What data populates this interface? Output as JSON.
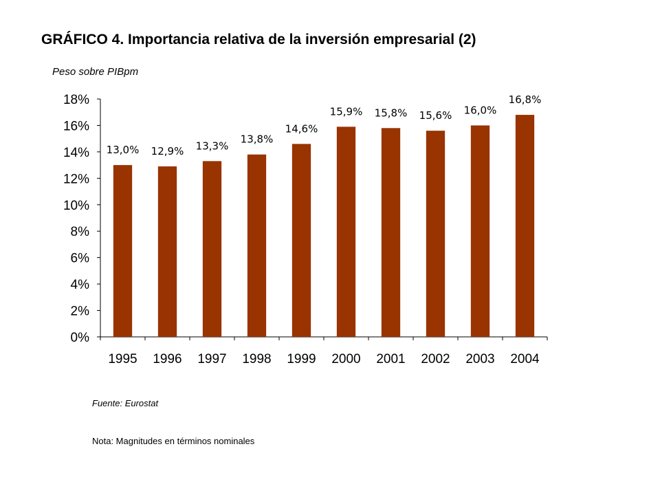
{
  "page": {
    "title": "GRÁFICO 4. Importancia relativa de la inversión empresarial (2)",
    "units_label": "Peso sobre PIBpm",
    "source": "Fuente: Eurostat",
    "note": "Nota: Magnitudes en términos nominales"
  },
  "chart_data": {
    "type": "bar",
    "title": "GRÁFICO 4. Importancia relativa de la inversión empresarial (2)",
    "ylabel": "Peso sobre PIBpm",
    "xlabel": "",
    "categories": [
      "1995",
      "1996",
      "1997",
      "1998",
      "1999",
      "2000",
      "2001",
      "2002",
      "2003",
      "2004"
    ],
    "values": [
      13.0,
      12.9,
      13.3,
      13.8,
      14.6,
      15.9,
      15.8,
      15.6,
      16.0,
      16.8
    ],
    "data_labels": [
      "13,0%",
      "12,9%",
      "13,3%",
      "13,8%",
      "14,6%",
      "15,9%",
      "15,8%",
      "15,6%",
      "16,0%",
      "16,8%"
    ],
    "ylim": [
      0,
      18
    ],
    "yticks": [
      0,
      2,
      4,
      6,
      8,
      10,
      12,
      14,
      16,
      18
    ],
    "ytick_labels": [
      "0%",
      "2%",
      "4%",
      "6%",
      "8%",
      "10%",
      "12%",
      "14%",
      "16%",
      "18%"
    ],
    "grid": false,
    "legend": "none",
    "bar_color": "#993300"
  }
}
